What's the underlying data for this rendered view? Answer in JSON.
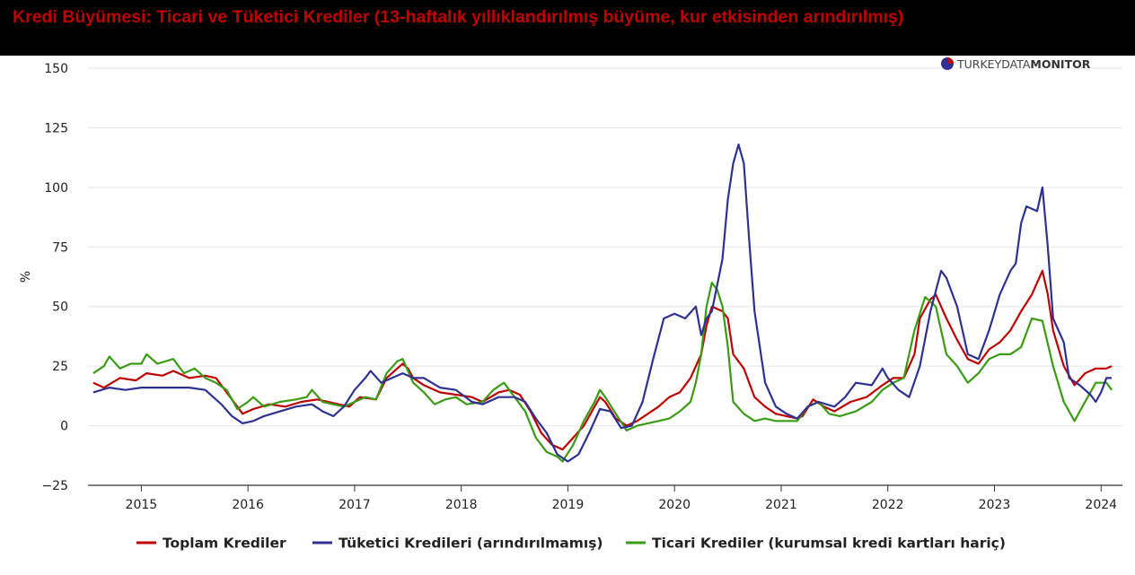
{
  "header": {
    "title": "Kredi Büyümesi: Ticari ve Tüketici Krediler (13-haftalık yıllıklandırılmış büyüme, kur etkisinden arındırılmış)"
  },
  "logo": {
    "text_light": "TURKEYDATA",
    "text_bold": "MONITOR"
  },
  "chart_data": {
    "type": "line",
    "ylabel": "%",
    "xlabel": "",
    "ylim": [
      -25,
      150
    ],
    "yticks": [
      -25,
      0,
      25,
      50,
      75,
      100,
      125,
      150
    ],
    "xlim": [
      2014.5,
      2024.2
    ],
    "xticks": [
      2015,
      2016,
      2017,
      2018,
      2019,
      2020,
      2021,
      2022,
      2023,
      2024
    ],
    "grid": "horizontal",
    "legend_position": "bottom",
    "series": [
      {
        "name": "Toplam Krediler",
        "color": "#c00000",
        "points": [
          [
            2014.55,
            18
          ],
          [
            2014.65,
            16
          ],
          [
            2014.8,
            20
          ],
          [
            2014.95,
            19
          ],
          [
            2015.05,
            22
          ],
          [
            2015.2,
            21
          ],
          [
            2015.3,
            23
          ],
          [
            2015.45,
            20
          ],
          [
            2015.6,
            21
          ],
          [
            2015.7,
            20
          ],
          [
            2015.8,
            14
          ],
          [
            2015.9,
            8
          ],
          [
            2015.95,
            5
          ],
          [
            2016.05,
            7
          ],
          [
            2016.2,
            9
          ],
          [
            2016.35,
            8
          ],
          [
            2016.5,
            10
          ],
          [
            2016.65,
            11
          ],
          [
            2016.75,
            10
          ],
          [
            2016.85,
            9
          ],
          [
            2016.95,
            8
          ],
          [
            2017.05,
            12
          ],
          [
            2017.2,
            11
          ],
          [
            2017.3,
            20
          ],
          [
            2017.4,
            24
          ],
          [
            2017.45,
            26
          ],
          [
            2017.5,
            24
          ],
          [
            2017.55,
            20
          ],
          [
            2017.65,
            17
          ],
          [
            2017.8,
            14
          ],
          [
            2017.95,
            13
          ],
          [
            2018.1,
            12
          ],
          [
            2018.2,
            10
          ],
          [
            2018.35,
            14
          ],
          [
            2018.45,
            15
          ],
          [
            2018.55,
            13
          ],
          [
            2018.65,
            6
          ],
          [
            2018.75,
            -3
          ],
          [
            2018.85,
            -8
          ],
          [
            2018.95,
            -10
          ],
          [
            2019.05,
            -5
          ],
          [
            2019.15,
            0
          ],
          [
            2019.25,
            8
          ],
          [
            2019.3,
            12
          ],
          [
            2019.35,
            10
          ],
          [
            2019.45,
            3
          ],
          [
            2019.55,
            0
          ],
          [
            2019.65,
            2
          ],
          [
            2019.75,
            5
          ],
          [
            2019.85,
            8
          ],
          [
            2019.95,
            12
          ],
          [
            2020.05,
            14
          ],
          [
            2020.15,
            20
          ],
          [
            2020.25,
            30
          ],
          [
            2020.3,
            42
          ],
          [
            2020.35,
            50
          ],
          [
            2020.45,
            48
          ],
          [
            2020.5,
            45
          ],
          [
            2020.55,
            30
          ],
          [
            2020.65,
            24
          ],
          [
            2020.75,
            12
          ],
          [
            2020.85,
            8
          ],
          [
            2020.95,
            5
          ],
          [
            2021.05,
            4
          ],
          [
            2021.15,
            3
          ],
          [
            2021.2,
            4
          ],
          [
            2021.3,
            11
          ],
          [
            2021.4,
            8
          ],
          [
            2021.5,
            6
          ],
          [
            2021.65,
            10
          ],
          [
            2021.8,
            12
          ],
          [
            2021.95,
            17
          ],
          [
            2022.05,
            20
          ],
          [
            2022.15,
            20
          ],
          [
            2022.25,
            30
          ],
          [
            2022.3,
            45
          ],
          [
            2022.4,
            53
          ],
          [
            2022.45,
            55
          ],
          [
            2022.55,
            45
          ],
          [
            2022.65,
            36
          ],
          [
            2022.75,
            28
          ],
          [
            2022.85,
            26
          ],
          [
            2022.95,
            32
          ],
          [
            2023.05,
            35
          ],
          [
            2023.15,
            40
          ],
          [
            2023.25,
            48
          ],
          [
            2023.35,
            55
          ],
          [
            2023.4,
            60
          ],
          [
            2023.45,
            65
          ],
          [
            2023.5,
            55
          ],
          [
            2023.55,
            40
          ],
          [
            2023.65,
            25
          ],
          [
            2023.75,
            17
          ],
          [
            2023.85,
            22
          ],
          [
            2023.95,
            24
          ],
          [
            2024.05,
            24
          ],
          [
            2024.1,
            25
          ]
        ]
      },
      {
        "name": "Tüketici Kredileri (arındırılmamış)",
        "color": "#2e3192",
        "points": [
          [
            2014.55,
            14
          ],
          [
            2014.7,
            16
          ],
          [
            2014.85,
            15
          ],
          [
            2015.0,
            16
          ],
          [
            2015.15,
            16
          ],
          [
            2015.3,
            16
          ],
          [
            2015.45,
            16
          ],
          [
            2015.6,
            15
          ],
          [
            2015.75,
            9
          ],
          [
            2015.85,
            4
          ],
          [
            2015.95,
            1
          ],
          [
            2016.05,
            2
          ],
          [
            2016.15,
            4
          ],
          [
            2016.3,
            6
          ],
          [
            2016.45,
            8
          ],
          [
            2016.6,
            9
          ],
          [
            2016.7,
            6
          ],
          [
            2016.8,
            4
          ],
          [
            2016.9,
            8
          ],
          [
            2017.0,
            15
          ],
          [
            2017.1,
            20
          ],
          [
            2017.15,
            23
          ],
          [
            2017.25,
            18
          ],
          [
            2017.35,
            20
          ],
          [
            2017.45,
            22
          ],
          [
            2017.55,
            20
          ],
          [
            2017.65,
            20
          ],
          [
            2017.8,
            16
          ],
          [
            2017.95,
            15
          ],
          [
            2018.1,
            10
          ],
          [
            2018.2,
            9
          ],
          [
            2018.35,
            12
          ],
          [
            2018.5,
            12
          ],
          [
            2018.6,
            10
          ],
          [
            2018.7,
            3
          ],
          [
            2018.8,
            -3
          ],
          [
            2018.9,
            -12
          ],
          [
            2019.0,
            -15
          ],
          [
            2019.1,
            -12
          ],
          [
            2019.2,
            -3
          ],
          [
            2019.3,
            7
          ],
          [
            2019.4,
            6
          ],
          [
            2019.5,
            -1
          ],
          [
            2019.6,
            0
          ],
          [
            2019.7,
            10
          ],
          [
            2019.8,
            28
          ],
          [
            2019.9,
            45
          ],
          [
            2020.0,
            47
          ],
          [
            2020.1,
            45
          ],
          [
            2020.2,
            50
          ],
          [
            2020.25,
            38
          ],
          [
            2020.3,
            45
          ],
          [
            2020.35,
            48
          ],
          [
            2020.45,
            70
          ],
          [
            2020.5,
            95
          ],
          [
            2020.55,
            110
          ],
          [
            2020.6,
            118
          ],
          [
            2020.65,
            110
          ],
          [
            2020.7,
            78
          ],
          [
            2020.75,
            48
          ],
          [
            2020.85,
            18
          ],
          [
            2020.95,
            8
          ],
          [
            2021.05,
            5
          ],
          [
            2021.15,
            3
          ],
          [
            2021.25,
            8
          ],
          [
            2021.35,
            10
          ],
          [
            2021.5,
            8
          ],
          [
            2021.6,
            12
          ],
          [
            2021.7,
            18
          ],
          [
            2021.85,
            17
          ],
          [
            2021.95,
            24
          ],
          [
            2022.0,
            20
          ],
          [
            2022.1,
            15
          ],
          [
            2022.2,
            12
          ],
          [
            2022.3,
            25
          ],
          [
            2022.4,
            48
          ],
          [
            2022.5,
            65
          ],
          [
            2022.55,
            62
          ],
          [
            2022.65,
            50
          ],
          [
            2022.75,
            30
          ],
          [
            2022.85,
            28
          ],
          [
            2022.95,
            40
          ],
          [
            2023.05,
            55
          ],
          [
            2023.15,
            65
          ],
          [
            2023.2,
            68
          ],
          [
            2023.25,
            85
          ],
          [
            2023.3,
            92
          ],
          [
            2023.4,
            90
          ],
          [
            2023.45,
            100
          ],
          [
            2023.5,
            75
          ],
          [
            2023.55,
            45
          ],
          [
            2023.65,
            35
          ],
          [
            2023.7,
            20
          ],
          [
            2023.8,
            17
          ],
          [
            2023.9,
            13
          ],
          [
            2023.95,
            10
          ],
          [
            2024.0,
            14
          ],
          [
            2024.05,
            20
          ],
          [
            2024.1,
            20
          ]
        ]
      },
      {
        "name": "Ticari Krediler (kurumsal kredi kartları hariç)",
        "color": "#3a9c14",
        "points": [
          [
            2014.55,
            22
          ],
          [
            2014.65,
            25
          ],
          [
            2014.7,
            29
          ],
          [
            2014.8,
            24
          ],
          [
            2014.9,
            26
          ],
          [
            2015.0,
            26
          ],
          [
            2015.05,
            30
          ],
          [
            2015.15,
            26
          ],
          [
            2015.3,
            28
          ],
          [
            2015.4,
            22
          ],
          [
            2015.5,
            24
          ],
          [
            2015.6,
            20
          ],
          [
            2015.7,
            18
          ],
          [
            2015.8,
            15
          ],
          [
            2015.9,
            7
          ],
          [
            2016.0,
            10
          ],
          [
            2016.05,
            12
          ],
          [
            2016.15,
            8
          ],
          [
            2016.3,
            10
          ],
          [
            2016.45,
            11
          ],
          [
            2016.55,
            12
          ],
          [
            2016.6,
            15
          ],
          [
            2016.7,
            10
          ],
          [
            2016.8,
            9
          ],
          [
            2016.9,
            8
          ],
          [
            2017.0,
            10
          ],
          [
            2017.1,
            12
          ],
          [
            2017.2,
            11
          ],
          [
            2017.3,
            22
          ],
          [
            2017.4,
            27
          ],
          [
            2017.45,
            28
          ],
          [
            2017.55,
            18
          ],
          [
            2017.65,
            14
          ],
          [
            2017.75,
            9
          ],
          [
            2017.85,
            11
          ],
          [
            2017.95,
            12
          ],
          [
            2018.05,
            9
          ],
          [
            2018.2,
            10
          ],
          [
            2018.3,
            15
          ],
          [
            2018.4,
            18
          ],
          [
            2018.5,
            12
          ],
          [
            2018.6,
            6
          ],
          [
            2018.7,
            -5
          ],
          [
            2018.8,
            -11
          ],
          [
            2018.9,
            -13
          ],
          [
            2018.95,
            -15
          ],
          [
            2019.05,
            -8
          ],
          [
            2019.15,
            2
          ],
          [
            2019.25,
            10
          ],
          [
            2019.3,
            15
          ],
          [
            2019.35,
            12
          ],
          [
            2019.45,
            5
          ],
          [
            2019.55,
            -2
          ],
          [
            2019.65,
            0
          ],
          [
            2019.75,
            1
          ],
          [
            2019.85,
            2
          ],
          [
            2019.95,
            3
          ],
          [
            2020.05,
            6
          ],
          [
            2020.15,
            10
          ],
          [
            2020.2,
            18
          ],
          [
            2020.25,
            30
          ],
          [
            2020.3,
            50
          ],
          [
            2020.35,
            60
          ],
          [
            2020.4,
            57
          ],
          [
            2020.45,
            50
          ],
          [
            2020.5,
            33
          ],
          [
            2020.55,
            10
          ],
          [
            2020.65,
            5
          ],
          [
            2020.75,
            2
          ],
          [
            2020.85,
            3
          ],
          [
            2020.95,
            2
          ],
          [
            2021.05,
            2
          ],
          [
            2021.15,
            2
          ],
          [
            2021.25,
            8
          ],
          [
            2021.35,
            10
          ],
          [
            2021.45,
            5
          ],
          [
            2021.55,
            4
          ],
          [
            2021.7,
            6
          ],
          [
            2021.85,
            10
          ],
          [
            2021.95,
            15
          ],
          [
            2022.05,
            18
          ],
          [
            2022.15,
            20
          ],
          [
            2022.25,
            40
          ],
          [
            2022.35,
            54
          ],
          [
            2022.45,
            50
          ],
          [
            2022.55,
            30
          ],
          [
            2022.65,
            25
          ],
          [
            2022.75,
            18
          ],
          [
            2022.85,
            22
          ],
          [
            2022.95,
            28
          ],
          [
            2023.05,
            30
          ],
          [
            2023.15,
            30
          ],
          [
            2023.25,
            33
          ],
          [
            2023.35,
            45
          ],
          [
            2023.45,
            44
          ],
          [
            2023.55,
            25
          ],
          [
            2023.65,
            10
          ],
          [
            2023.75,
            2
          ],
          [
            2023.85,
            10
          ],
          [
            2023.95,
            18
          ],
          [
            2024.05,
            18
          ],
          [
            2024.1,
            15
          ]
        ]
      }
    ]
  }
}
